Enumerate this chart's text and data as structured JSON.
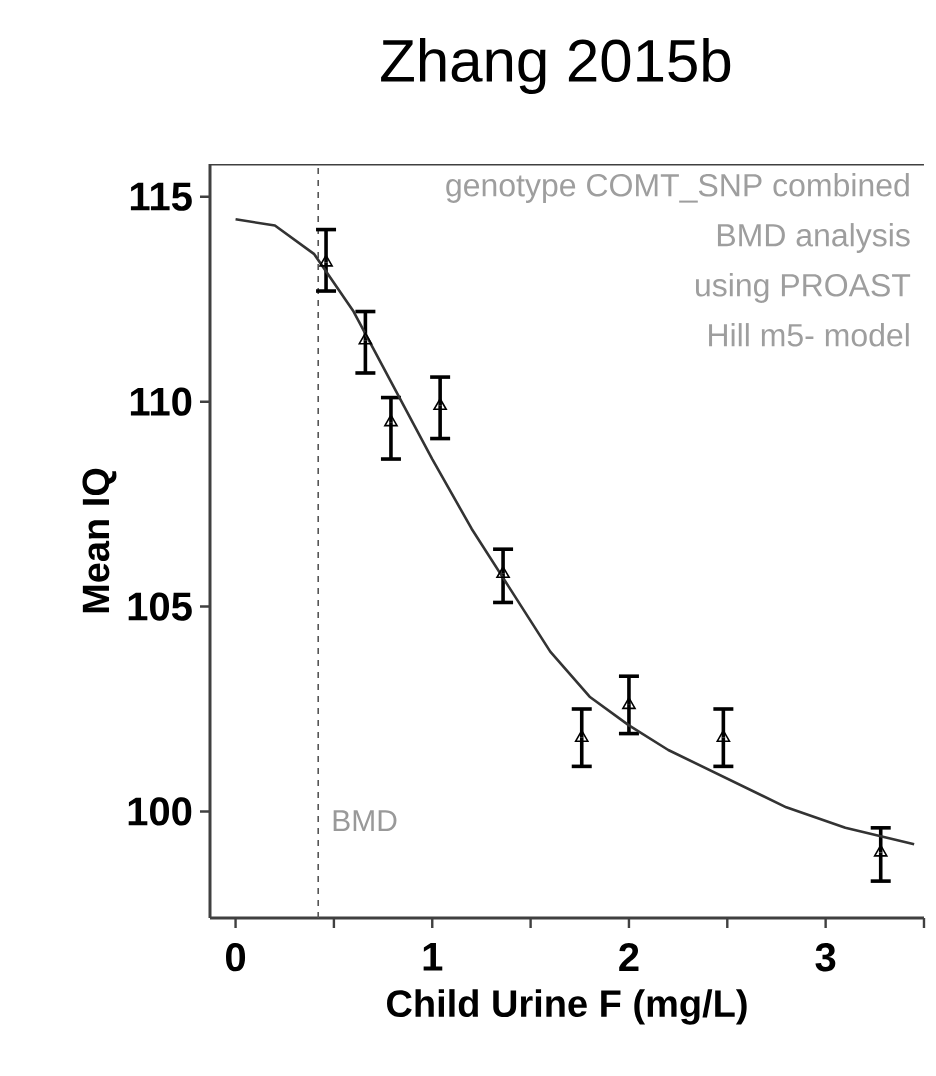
{
  "chart_data": {
    "type": "scatter",
    "title": "Zhang 2015b",
    "xlabel": "Child Urine F (mg/L)",
    "ylabel": "Mean IQ",
    "annotations": [
      "genotype COMT_SNP combined",
      "BMD analysis",
      "using PROAST",
      "Hill m5- model"
    ],
    "xlim": [
      -0.13,
      3.5
    ],
    "ylim": [
      97.4,
      115.8
    ],
    "xticks": [
      0,
      {
        "value": 0.5,
        "label": null
      },
      1,
      {
        "value": 1.5,
        "label": null
      },
      2,
      {
        "value": 2.5,
        "label": null
      },
      3,
      {
        "value": 3.5,
        "label": null
      }
    ],
    "yticks": [
      100,
      105,
      110,
      115
    ],
    "grid": false,
    "marker": "triangle",
    "ref_lines": [
      {
        "axis": "x",
        "value": 0.42,
        "label": "BMD",
        "color": "#555555",
        "line_style": "dashed"
      }
    ],
    "series": [
      {
        "color": "#000000",
        "x": [
          0.46,
          0.66,
          0.79,
          1.04,
          1.36,
          1.76,
          2.0,
          2.48,
          3.28
        ],
        "values": [
          113.4,
          111.5,
          109.5,
          109.9,
          105.8,
          101.8,
          102.6,
          101.8,
          99.0
        ],
        "errors": [
          [
            112.7,
            114.2
          ],
          [
            110.7,
            112.2
          ],
          [
            108.6,
            110.1
          ],
          [
            109.1,
            110.6
          ],
          [
            105.1,
            106.4
          ],
          [
            101.1,
            102.5
          ],
          [
            101.9,
            103.3
          ],
          [
            101.1,
            102.5
          ],
          [
            98.3,
            99.6
          ]
        ]
      },
      {
        "type": "line",
        "color": "#333333",
        "marker": "none",
        "x": [
          0,
          0.2,
          0.4,
          0.6,
          0.8,
          1.0,
          1.2,
          1.4,
          1.6,
          1.8,
          2.0,
          2.2,
          2.5,
          2.8,
          3.1,
          3.45
        ],
        "values": [
          114.45,
          114.3,
          113.6,
          112.2,
          110.4,
          108.6,
          106.9,
          105.4,
          103.9,
          102.8,
          102.1,
          101.5,
          100.8,
          100.1,
          99.6,
          99.2
        ]
      }
    ]
  }
}
